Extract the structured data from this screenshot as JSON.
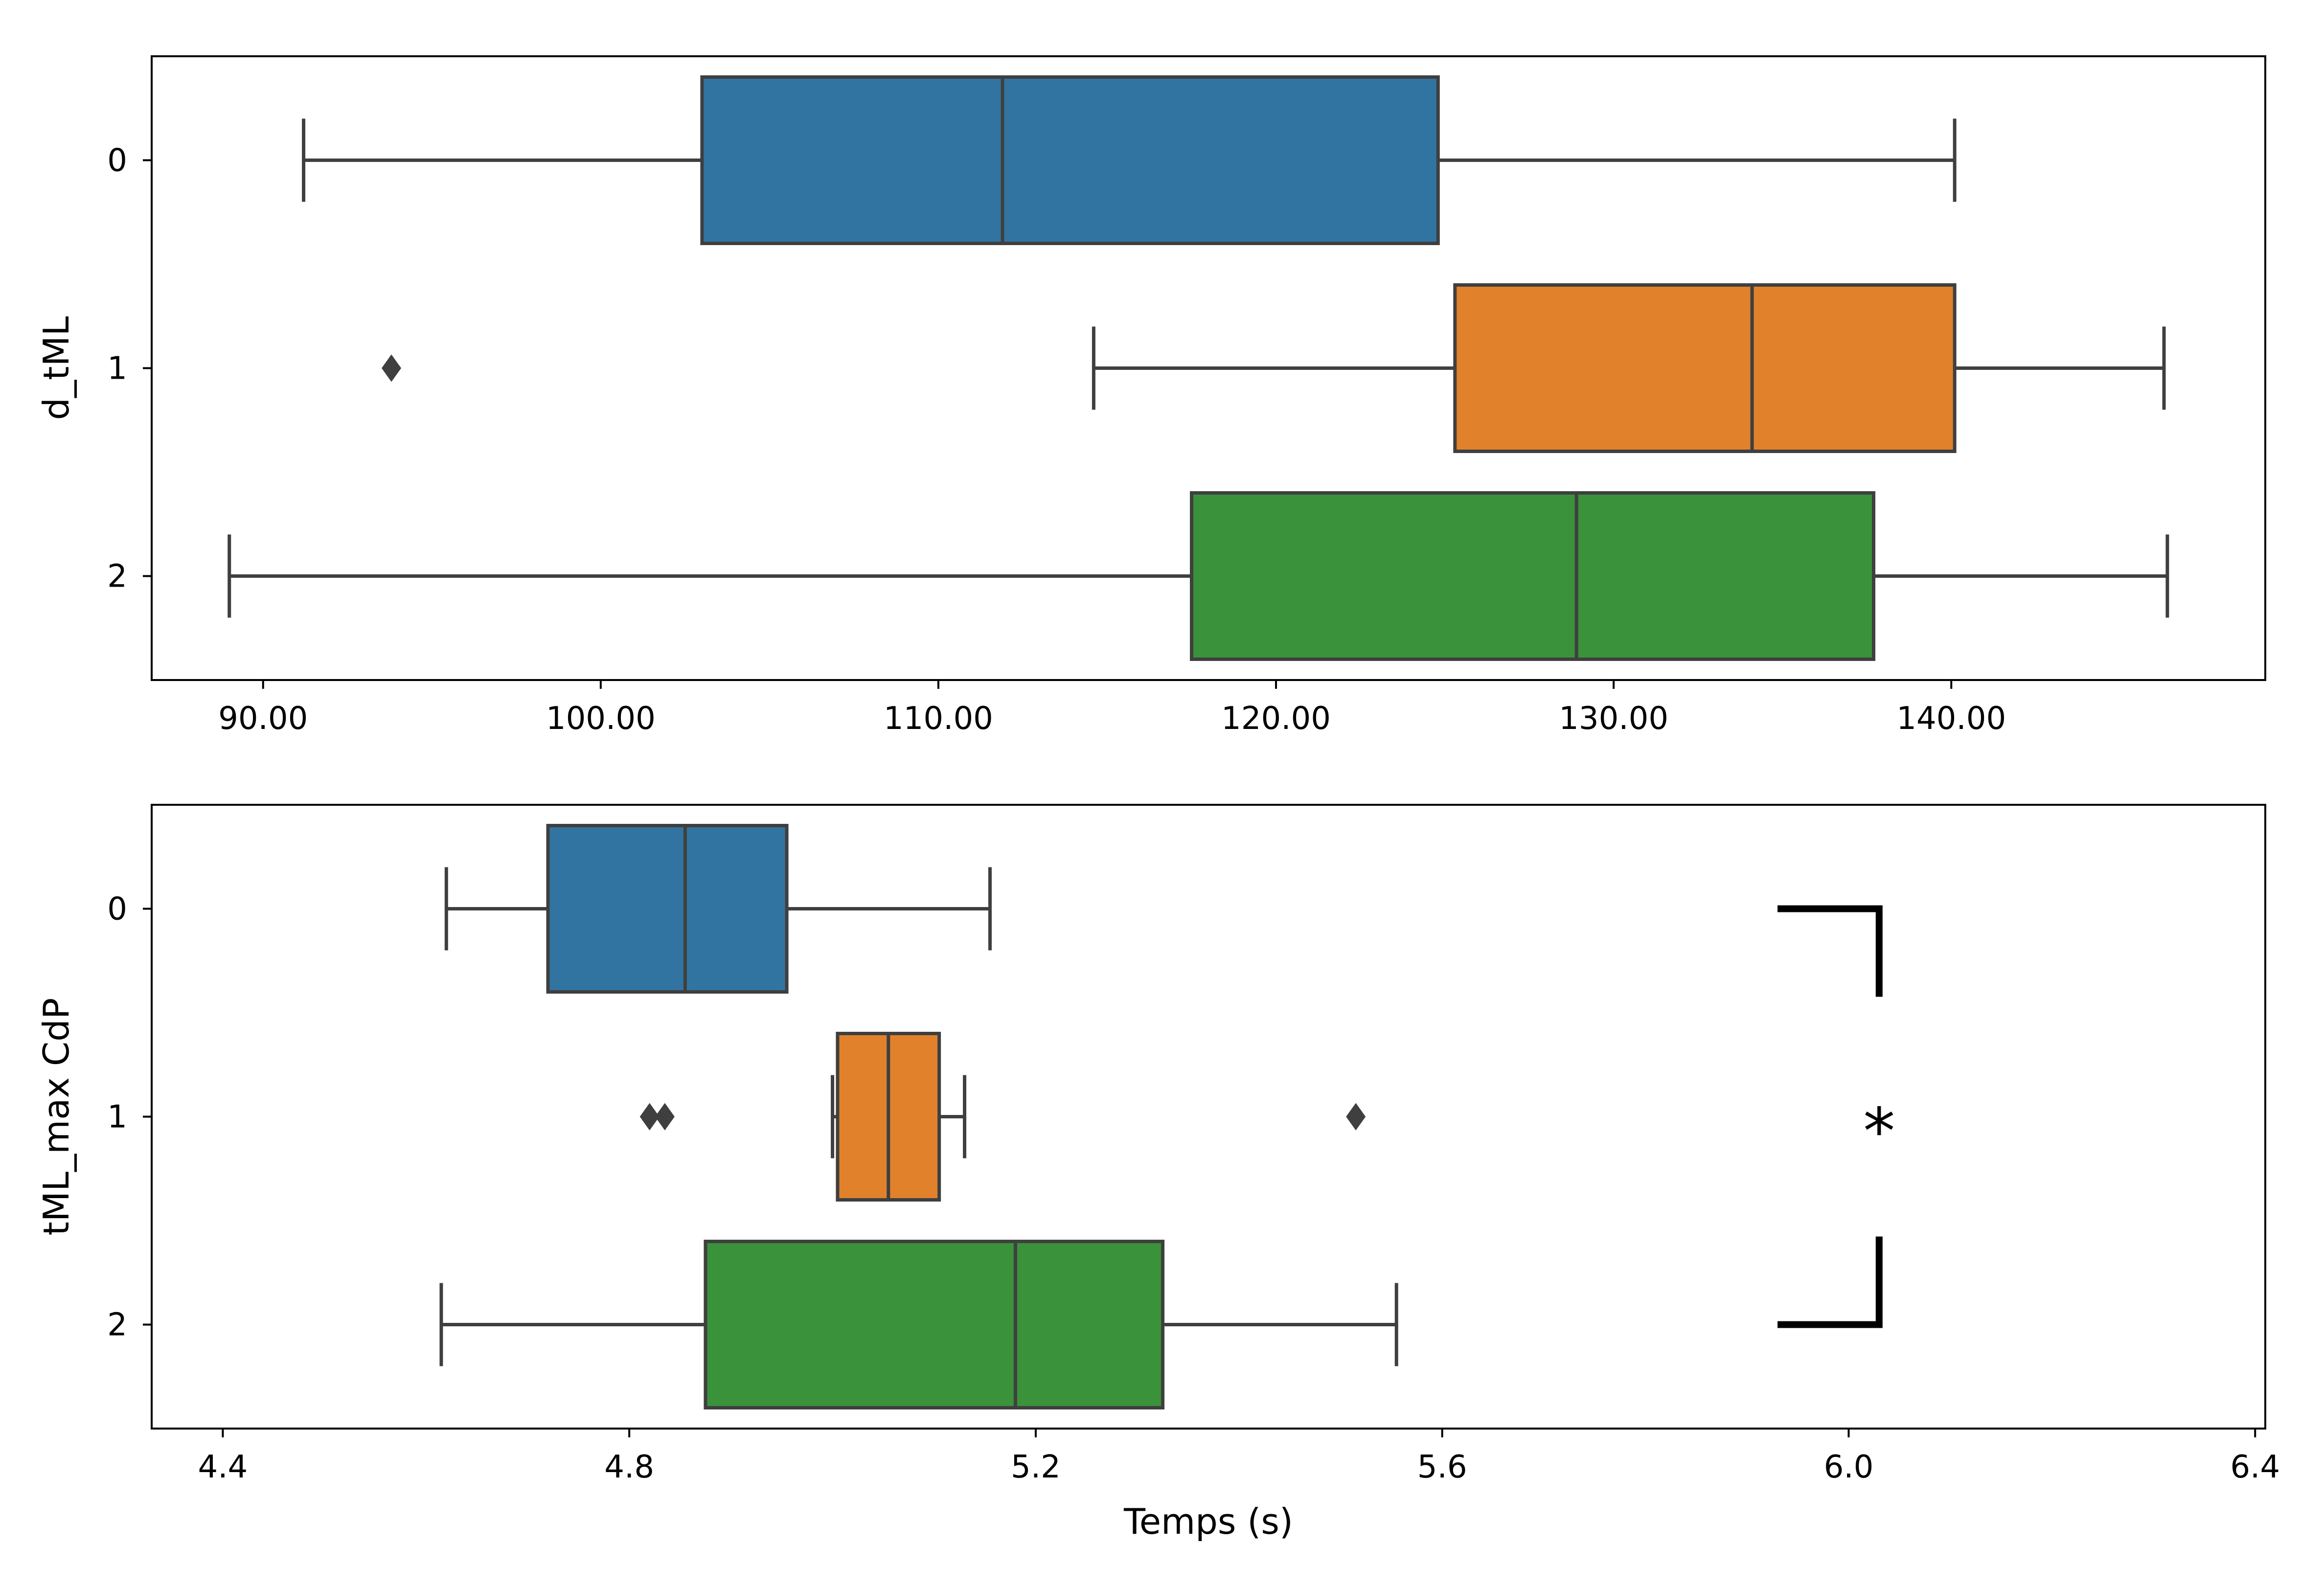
{
  "chart_data": [
    {
      "type": "box",
      "orientation": "horizontal",
      "ylabel": "d_tML",
      "xlabel": "",
      "categories": [
        "0",
        "1",
        "2"
      ],
      "xlim": [
        86.7,
        149.3
      ],
      "xticks": [
        "90.00",
        "100.00",
        "110.00",
        "120.00",
        "130.00",
        "140.00"
      ],
      "xtick_values": [
        90,
        100,
        110,
        120,
        130,
        140
      ],
      "colors": [
        "#3274a1",
        "#e1812c",
        "#3a923a"
      ],
      "boxes": [
        {
          "category": "0",
          "whisker_low": 91.2,
          "q1": 103.0,
          "median": 111.9,
          "q3": 124.8,
          "whisker_high": 140.1,
          "outliers": []
        },
        {
          "category": "1",
          "whisker_low": 114.6,
          "q1": 125.3,
          "median": 134.1,
          "q3": 140.1,
          "whisker_high": 146.3,
          "outliers": [
            93.8
          ]
        },
        {
          "category": "2",
          "whisker_low": 89.0,
          "q1": 117.5,
          "median": 128.9,
          "q3": 137.7,
          "whisker_high": 146.4,
          "outliers": []
        }
      ]
    },
    {
      "type": "box",
      "orientation": "horizontal",
      "ylabel": "tML_max CdP",
      "xlabel": "Temps (s)",
      "categories": [
        "0",
        "1",
        "2"
      ],
      "xlim": [
        4.33,
        6.41
      ],
      "xticks": [
        "4.4",
        "4.8",
        "5.2",
        "5.6",
        "6.0",
        "6.4"
      ],
      "xtick_values": [
        4.4,
        4.8,
        5.2,
        5.6,
        6.0,
        6.4
      ],
      "colors": [
        "#3274a1",
        "#e1812c",
        "#3a923a"
      ],
      "boxes": [
        {
          "category": "0",
          "whisker_low": 4.62,
          "q1": 4.72,
          "median": 4.855,
          "q3": 4.955,
          "whisker_high": 5.155,
          "outliers": []
        },
        {
          "category": "1",
          "whisker_low": 5.0,
          "q1": 5.005,
          "median": 5.055,
          "q3": 5.105,
          "whisker_high": 5.13,
          "outliers": [
            4.82,
            4.835,
            5.515
          ]
        },
        {
          "category": "2",
          "whisker_low": 4.615,
          "q1": 4.875,
          "median": 5.18,
          "q3": 5.325,
          "whisker_high": 5.555,
          "outliers": []
        }
      ],
      "annotation": {
        "text": "*",
        "between": [
          "0",
          "2"
        ],
        "x": 6.03,
        "x_start": 5.93
      }
    }
  ]
}
